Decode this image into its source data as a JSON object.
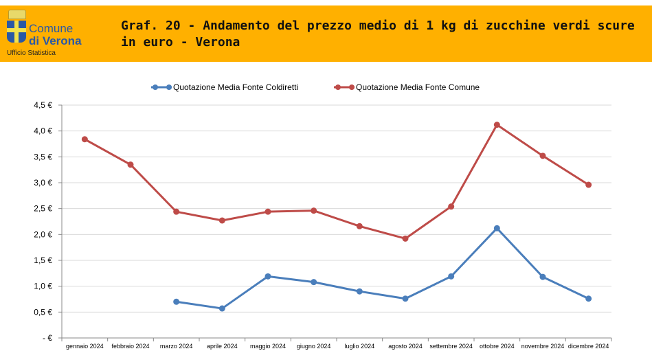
{
  "header": {
    "logo_line1": "Comune",
    "logo_line2": "di Verona",
    "logo_sub": "Ufficio Statistica",
    "title": "Graf. 20 - Andamento del prezzo medio di 1 kg di zucchine verdi scure in euro - Verona"
  },
  "chart_data": {
    "type": "line",
    "title": "Graf. 20 - Andamento del prezzo medio di 1 kg di zucchine verdi scure in euro - Verona",
    "categories": [
      "gennaio 2024",
      "febbraio 2024",
      "marzo 2024",
      "aprile 2024",
      "maggio 2024",
      "giugno 2024",
      "luglio 2024",
      "agosto 2024",
      "settembre 2024",
      "ottobre 2024",
      "novembre 2024",
      "dicembre 2024"
    ],
    "yticks": [
      "- €",
      "0,5 €",
      "1,0 €",
      "1,5 €",
      "2,0 €",
      "2,5 €",
      "3,0 €",
      "3,5 €",
      "4,0 €",
      "4,5 €"
    ],
    "ylim": [
      0,
      4.5
    ],
    "legend_position": "top",
    "grid": true,
    "series": [
      {
        "name": "Quotazione Media Fonte Coldiretti",
        "color": "#4A7EBB",
        "values": [
          null,
          null,
          0.7,
          0.57,
          1.19,
          1.08,
          0.9,
          0.76,
          1.19,
          2.12,
          1.18,
          0.76
        ]
      },
      {
        "name": "Quotazione Media Fonte Comune",
        "color": "#BE4B48",
        "values": [
          3.84,
          3.35,
          2.44,
          2.27,
          2.44,
          2.46,
          2.16,
          1.92,
          2.54,
          4.12,
          3.52,
          2.96
        ]
      }
    ]
  }
}
